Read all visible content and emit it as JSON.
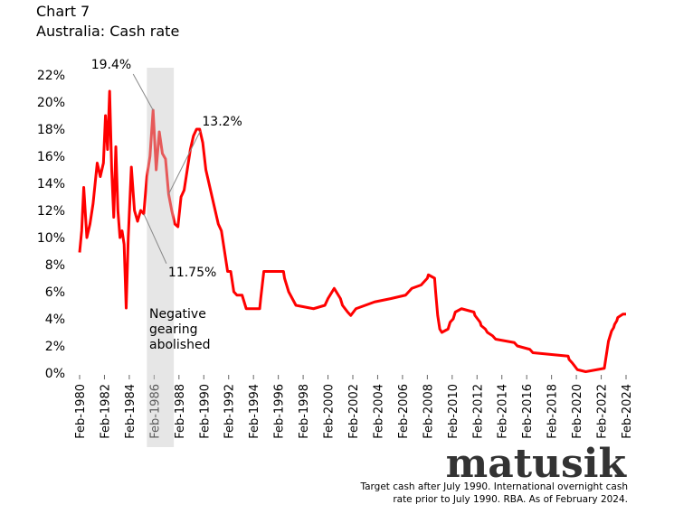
{
  "chart_data": {
    "type": "line",
    "title": "Chart 7",
    "subtitle": "Australia: Cash rate",
    "x": [
      "Feb-1980",
      "Apr-1980",
      "Jun-1980",
      "Sep-1980",
      "Dec-1980",
      "Mar-1981",
      "Jul-1981",
      "Oct-1981",
      "Jan-1982",
      "Mar-1982",
      "May-1982",
      "Jul-1982",
      "Sep-1982",
      "Nov-1982",
      "Jan-1983",
      "Mar-1983",
      "May-1983",
      "Jul-1983",
      "Sep-1983",
      "Nov-1983",
      "Jan-1984",
      "Apr-1984",
      "Jul-1984",
      "Oct-1984",
      "Jan-1985",
      "Apr-1985",
      "Jul-1985",
      "Oct-1985",
      "Jan-1986",
      "Apr-1986",
      "Jul-1986",
      "Oct-1986",
      "Jan-1987",
      "Apr-1987",
      "Jul-1987",
      "Oct-1987",
      "Jan-1988",
      "Apr-1988",
      "Jul-1988",
      "Oct-1988",
      "Jan-1989",
      "Apr-1989",
      "Jul-1989",
      "Oct-1989",
      "Jan-1990",
      "Apr-1990",
      "Jul-1990",
      "Oct-1990",
      "Jan-1991",
      "Apr-1991",
      "Jul-1991",
      "Oct-1991",
      "Jan-1992",
      "Apr-1992",
      "Jul-1992",
      "Oct-1992",
      "Mar-1993",
      "Jul-1993",
      "Aug-1994",
      "Sep-1994",
      "Dec-1994",
      "Jul-1996",
      "Aug-1996",
      "Dec-1996",
      "Jul-1997",
      "Dec-1998",
      "Nov-1999",
      "Feb-2000",
      "Aug-2000",
      "Feb-2001",
      "Apr-2001",
      "Sep-2001",
      "Dec-2001",
      "May-2002",
      "Nov-2003",
      "Mar-2005",
      "May-2006",
      "Nov-2006",
      "Aug-2007",
      "Feb-2008",
      "Mar-2008",
      "Sep-2008",
      "Oct-2008",
      "Dec-2008",
      "Feb-2009",
      "Apr-2009",
      "Oct-2009",
      "Dec-2009",
      "Mar-2010",
      "May-2010",
      "Nov-2010",
      "Nov-2011",
      "Dec-2011",
      "May-2012",
      "Jun-2012",
      "Oct-2012",
      "Dec-2012",
      "May-2013",
      "Aug-2013",
      "Feb-2015",
      "May-2015",
      "May-2016",
      "Aug-2016",
      "Jun-2019",
      "Jul-2019",
      "Oct-2019",
      "Mar-2020",
      "Nov-2020",
      "May-2022",
      "Jun-2022",
      "Jul-2022",
      "Aug-2022",
      "Sep-2022",
      "Oct-2022",
      "Nov-2022",
      "Dec-2022",
      "Feb-2023",
      "Mar-2023",
      "May-2023",
      "Jun-2023",
      "Nov-2023",
      "Feb-2024"
    ],
    "series": [
      {
        "name": "Cash rate",
        "color": "#ff0000",
        "values": [
          8.9,
          10.5,
          13.7,
          10.0,
          11.0,
          12.5,
          15.5,
          14.5,
          15.5,
          19.0,
          16.5,
          20.8,
          15.0,
          11.5,
          16.7,
          12.0,
          10.0,
          10.5,
          9.5,
          4.8,
          10.0,
          15.2,
          12.0,
          11.2,
          12.0,
          11.75,
          14.5,
          16.0,
          19.4,
          15.0,
          17.8,
          16.2,
          15.8,
          13.2,
          12.0,
          11.0,
          10.8,
          13.0,
          13.5,
          15.0,
          16.5,
          17.5,
          18.0,
          18.0,
          17.0,
          15.0,
          14.0,
          13.0,
          12.0,
          11.0,
          10.5,
          9.0,
          7.5,
          7.5,
          6.0,
          5.75,
          5.75,
          4.75,
          4.75,
          5.5,
          7.5,
          7.5,
          7.0,
          6.0,
          5.0,
          4.75,
          5.0,
          5.5,
          6.25,
          5.5,
          5.0,
          4.5,
          4.25,
          4.75,
          5.25,
          5.5,
          5.75,
          6.25,
          6.5,
          7.0,
          7.25,
          7.0,
          6.0,
          4.25,
          3.25,
          3.0,
          3.25,
          3.75,
          4.0,
          4.5,
          4.75,
          4.5,
          4.25,
          3.75,
          3.5,
          3.25,
          3.0,
          2.75,
          2.5,
          2.25,
          2.0,
          1.75,
          1.5,
          1.25,
          1.0,
          0.75,
          0.25,
          0.1,
          0.35,
          0.85,
          1.35,
          1.85,
          2.35,
          2.6,
          2.85,
          3.1,
          3.35,
          3.6,
          3.85,
          4.1,
          4.35,
          4.35
        ]
      }
    ],
    "xlim": [
      "Feb-1980",
      "Feb-2024"
    ],
    "xticks": [
      "Feb-1980",
      "Feb-1982",
      "Feb-1984",
      "Feb-1986",
      "Feb-1988",
      "Feb-1990",
      "Feb-1992",
      "Feb-1994",
      "Feb-1996",
      "Feb-1998",
      "Feb-2000",
      "Feb-2002",
      "Feb-2004",
      "Feb-2006",
      "Feb-2008",
      "Feb-2010",
      "Feb-2012",
      "Feb-2014",
      "Feb-2016",
      "Feb-2018",
      "Feb-2020",
      "Feb-2022",
      "Feb-2024"
    ],
    "ylim": [
      0,
      22
    ],
    "yticks": [
      {
        "value": 0,
        "label": "0%"
      },
      {
        "value": 2,
        "label": "2%"
      },
      {
        "value": 4,
        "label": "4%"
      },
      {
        "value": 6,
        "label": "6%"
      },
      {
        "value": 8,
        "label": "8%"
      },
      {
        "value": 10,
        "label": "10%"
      },
      {
        "value": 12,
        "label": "12%"
      },
      {
        "value": 14,
        "label": "14%"
      },
      {
        "value": 16,
        "label": "16%"
      },
      {
        "value": 18,
        "label": "18%"
      },
      {
        "value": 20,
        "label": "20%"
      },
      {
        "value": 22,
        "label": "22%"
      }
    ],
    "highlight": {
      "from": "Jul-1985",
      "to": "Sep-1987",
      "label": "Negative gearing abolished"
    },
    "annotations": [
      {
        "text": "19.4%",
        "x": "Jan-1986",
        "value": 19.4
      },
      {
        "text": "13.2%",
        "x": "Apr-1987",
        "value": 13.2
      },
      {
        "text": "11.75%",
        "x": "Apr-1985",
        "value": 11.75
      }
    ],
    "brand": "matusik",
    "note": [
      "Target cash after July 1990.  International overnight cash",
      "rate prior to July 1990.  RBA.  As of February 2024."
    ]
  }
}
